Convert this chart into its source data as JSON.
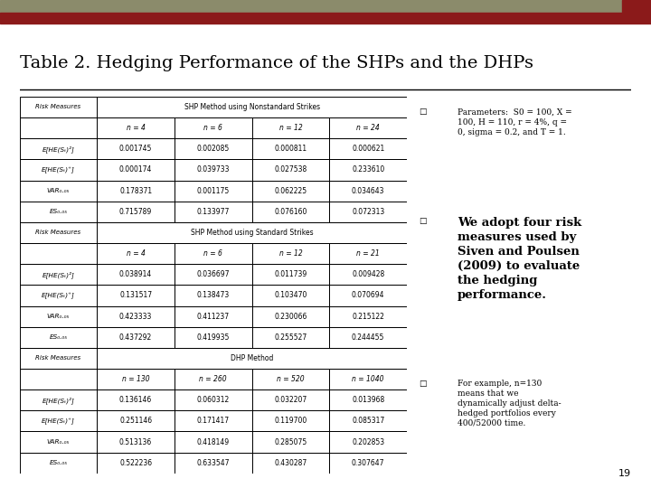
{
  "title": "Table 2. Hedging Performance of the SHPs and the DHPs",
  "bar_olive": "#8B8B6B",
  "bar_dark_red": "#8B1A1A",
  "background": "#FFFFFF",
  "table_sections": [
    {
      "section_header": "SHP Method using Nonstandard Strikes",
      "col_headers": [
        "n = 4",
        "n = 6",
        "n = 12",
        "n = 24"
      ],
      "rows": [
        [
          "E[HE(Sₜ)²]",
          "0.001745",
          "0.002085",
          "0.000811",
          "0.000621"
        ],
        [
          "E[HE(Sₜ)⁺]",
          "0.000174",
          "0.039733",
          "0.027538",
          "0.233610"
        ],
        [
          "VAR₀.₀₅",
          "0.178371",
          "0.001175",
          "0.062225",
          "0.034643"
        ],
        [
          "ES₀.₀₅",
          "0.715789",
          "0.133977",
          "0.076160",
          "0.072313"
        ]
      ]
    },
    {
      "section_header": "SHP Method using Standard Strikes",
      "col_headers": [
        "n = 4",
        "n = 6",
        "n = 12",
        "n = 21"
      ],
      "rows": [
        [
          "E[HE(Sₜ)²]",
          "0.038914",
          "0.036697",
          "0.011739",
          "0.009428"
        ],
        [
          "E[HE(Sₜ)⁺]",
          "0.131517",
          "0.138473",
          "0.103470",
          "0.070694"
        ],
        [
          "VAR₀.₀₅",
          "0.423333",
          "0.411237",
          "0.230066",
          "0.215122"
        ],
        [
          "ES₀.₀₅",
          "0.437292",
          "0.419935",
          "0.255527",
          "0.244455"
        ]
      ]
    },
    {
      "section_header": "DHP Method",
      "col_headers": [
        "n = 130",
        "n = 260",
        "n = 520",
        "n = 1040"
      ],
      "rows": [
        [
          "E[HE(Sₜ)²]",
          "0.136146",
          "0.060312",
          "0.032207",
          "0.013968"
        ],
        [
          "E[HE(Sₜ)⁺]",
          "0.251146",
          "0.171417",
          "0.119700",
          "0.085317"
        ],
        [
          "VAR₀.₀₅",
          "0.513136",
          "0.418149",
          "0.285075",
          "0.202853"
        ],
        [
          "ES₀.₀₅",
          "0.522236",
          "0.633547",
          "0.430287",
          "0.307647"
        ]
      ]
    }
  ],
  "bullet1_normal": "Parameters:  S0 = 100, X =\n100, H = 110, r = 4%, q =\n0, sigma = 0.2, and T = 1.",
  "bullet2_bold": "We adopt four risk\nmeasures used by\nSiven and Poulsen\n(2009) to evaluate\nthe hedging\nperformance.",
  "bullet3_normal": "For example, n=130\nmeans that we\ndynamically adjust delta-\nhedged portfolios every\n400/52000 time.",
  "page_number": "19"
}
